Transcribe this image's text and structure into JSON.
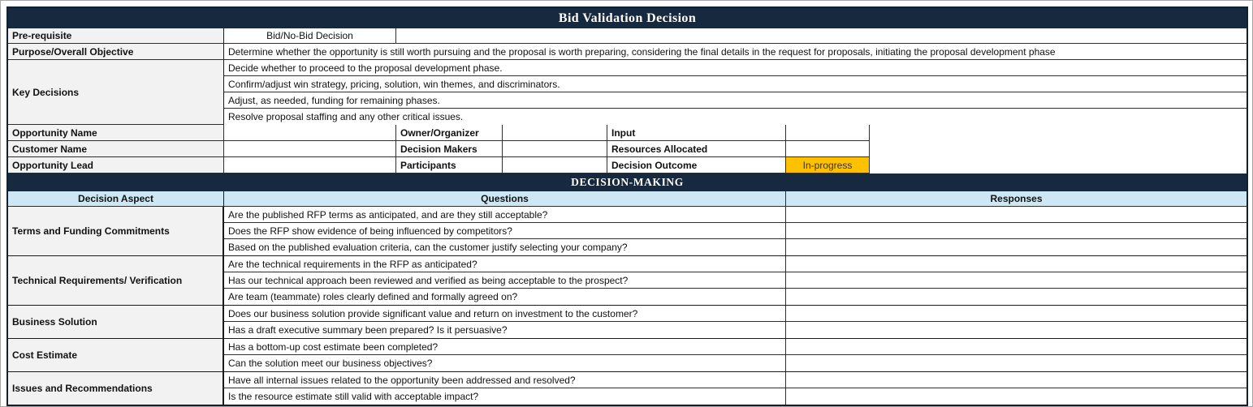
{
  "title": "Bid Validation Decision",
  "colors": {
    "navy": "#16293E",
    "header_blue": "#CDE7F5",
    "label_bg": "#F2F2F2",
    "status_orange": "#FFC000",
    "grid": "#2E2E2E",
    "grid_dark": "#1A1A1A",
    "border_dark": "#121F2E",
    "status_text": "#3A3320",
    "title_text": "#FFFFFF"
  },
  "top": {
    "prerequisite_label": "Pre-requisite",
    "prerequisite_value": "Bid/No-Bid Decision",
    "prerequisite_extra": "",
    "purpose_label": "Purpose/Overall Objective",
    "purpose_value": "Determine whether the opportunity is still worth pursuing and the proposal is worth preparing, considering the final details in the request for proposals, initiating the proposal development phase",
    "key_decisions_label": "Key Decisions",
    "key_decisions": [
      "Decide whether to proceed to the proposal development phase.",
      "Confirm/adjust win strategy, pricing, solution, win themes, and discriminators.",
      "Adjust, as needed, funding for remaining phases.",
      "Resolve proposal staffing and any other critical issues."
    ]
  },
  "info": {
    "rows": [
      {
        "label1": "Opportunity Name",
        "value1": "",
        "label2": "Owner/Organizer",
        "value2": "",
        "label3": "Input",
        "value3": ""
      },
      {
        "label1": "Customer Name",
        "value1": "",
        "label2": "Decision Makers",
        "value2": "",
        "label3": "Resources Allocated",
        "value3": ""
      },
      {
        "label1": "Opportunity Lead",
        "value1": "",
        "label2": "Participants",
        "value2": "",
        "label3": "Decision Outcome",
        "value3": "In-progress"
      }
    ]
  },
  "decision_making": {
    "section_title": "DECISION-MAKING",
    "headers": [
      "Decision Aspect",
      "Questions",
      "Responses"
    ],
    "groups": [
      {
        "aspect": "Terms and Funding Commitments",
        "questions": [
          "Are the published RFP terms as anticipated, and are they still acceptable?",
          "Does the RFP show evidence of being influenced by competitors?",
          "Based on the published evaluation criteria, can the customer justify selecting your company?"
        ],
        "responses": [
          "",
          "",
          ""
        ]
      },
      {
        "aspect": "Technical Requirements/ Verification",
        "questions": [
          "Are the technical requirements in the RFP as anticipated?",
          "Has our technical approach been reviewed and verified as being acceptable to the prospect?",
          "Are team (teammate) roles clearly defined and formally agreed on?"
        ],
        "responses": [
          "",
          "",
          ""
        ]
      },
      {
        "aspect": "Business Solution",
        "questions": [
          "Does our business solution provide significant value and return on investment to the customer?",
          "Has a draft executive summary been prepared? Is it persuasive?"
        ],
        "responses": [
          "",
          ""
        ]
      },
      {
        "aspect": "Cost Estimate",
        "questions": [
          "Has a bottom-up cost estimate been completed?",
          "Can the solution meet our business objectives?"
        ],
        "responses": [
          "",
          ""
        ]
      },
      {
        "aspect": "Issues and Recommendations",
        "questions": [
          "Have all internal issues related to the opportunity been addressed and resolved?",
          "Is the resource estimate still valid with acceptable impact?"
        ],
        "responses": [
          "",
          ""
        ]
      }
    ]
  }
}
